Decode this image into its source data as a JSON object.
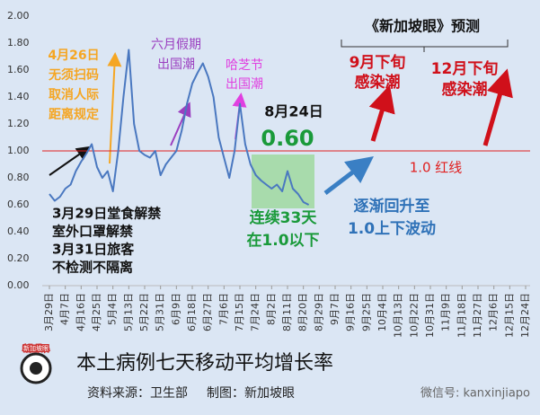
{
  "chart_data": {
    "type": "line",
    "title": "本土病例七天移动平均增长率",
    "source": "资料来源：卫生部",
    "credit": "制图：新加坡眼",
    "logo_text": "新加坡眼",
    "watermark": "微信号: kanxinjiapo",
    "categories": [
      "3月29日",
      null,
      null,
      "4月7日",
      null,
      null,
      "4月16日",
      null,
      null,
      "4月25日",
      null,
      null,
      "5月4日",
      null,
      null,
      "5月13日",
      null,
      null,
      "5月22日",
      null,
      null,
      "5月31日",
      null,
      null,
      "6月9日",
      null,
      null,
      "6月18日",
      null,
      null,
      "6月27日",
      null,
      null,
      "7月6日",
      null,
      null,
      "7月15日",
      null,
      null,
      "7月24日",
      null,
      null,
      "8月2日",
      null,
      null,
      "8月11日",
      null,
      null,
      "8月20日",
      null,
      null,
      "8月29日",
      null,
      null,
      "9月7日",
      null,
      null,
      "9月16日",
      null,
      null,
      "9月25日",
      null,
      null,
      "10月4日",
      null,
      null,
      "10月13日",
      null,
      null,
      "10月22日",
      null,
      null,
      "10月31日",
      null,
      null,
      "11月9日",
      null,
      null,
      "11月18日",
      null,
      null,
      "11月27日",
      null,
      null,
      "12月6日",
      null,
      null,
      "12月15日",
      null,
      null,
      "12月24日"
    ],
    "series": [
      {
        "name": "七天移动平均增长率",
        "color": "#4a78c0",
        "values": [
          0.68,
          0.63,
          0.66,
          0.72,
          0.75,
          0.85,
          0.92,
          0.98,
          1.05,
          0.88,
          0.8,
          0.85,
          0.7,
          1.0,
          1.4,
          1.75,
          1.2,
          1.0,
          0.97,
          0.95,
          1.0,
          0.82,
          0.9,
          0.95,
          1.0,
          1.15,
          1.35,
          1.5,
          1.58,
          1.65,
          1.55,
          1.4,
          1.1,
          0.95,
          0.8,
          1.0,
          1.35,
          1.05,
          0.9,
          0.82,
          0.78,
          0.75,
          0.72,
          0.75,
          0.7,
          0.85,
          0.72,
          0.68,
          0.62,
          0.6,
          null,
          null,
          null,
          null,
          null,
          null,
          null,
          null,
          null,
          null,
          null,
          null,
          null,
          null,
          null,
          null,
          null,
          null,
          null,
          null,
          null,
          null,
          null,
          null,
          null,
          null,
          null,
          null,
          null,
          null,
          null,
          null,
          null,
          null,
          null,
          null,
          null,
          null,
          null,
          null,
          null
        ]
      }
    ],
    "ylim": [
      0,
      2
    ],
    "yticks": [
      {
        "value": 0,
        "label": "0.00"
      },
      {
        "value": 0.2,
        "label": "0.20"
      },
      {
        "value": 0.4,
        "label": "0.40"
      },
      {
        "value": 0.6,
        "label": "0.60"
      },
      {
        "value": 0.8,
        "label": "0.80"
      },
      {
        "value": 1,
        "label": "1.00"
      },
      {
        "value": 1.2,
        "label": "1.20"
      },
      {
        "value": 1.4,
        "label": "1.40"
      },
      {
        "value": 1.6,
        "label": "1.60"
      },
      {
        "value": 1.8,
        "label": "1.80"
      },
      {
        "value": 2,
        "label": "2.00"
      }
    ],
    "reference_line": {
      "value": 1,
      "label": "1.0 红线",
      "color": "#e02020"
    },
    "annotations": [
      "4月26日",
      "无须扫码",
      "取消人际",
      "距离规定",
      "六月假期",
      "出国潮",
      "哈芝节",
      "出国潮",
      "8月24日",
      "0.60",
      "《新加坡眼》预测",
      "9月下旬",
      "感染潮",
      "12月下旬",
      "感染潮",
      "逐渐回升至",
      "1.0上下波动",
      "连续33天",
      "在1.0以下",
      "3月29日堂食解禁",
      "室外口罩解禁",
      "3月31日旅客",
      "不检测不隔离"
    ]
  }
}
